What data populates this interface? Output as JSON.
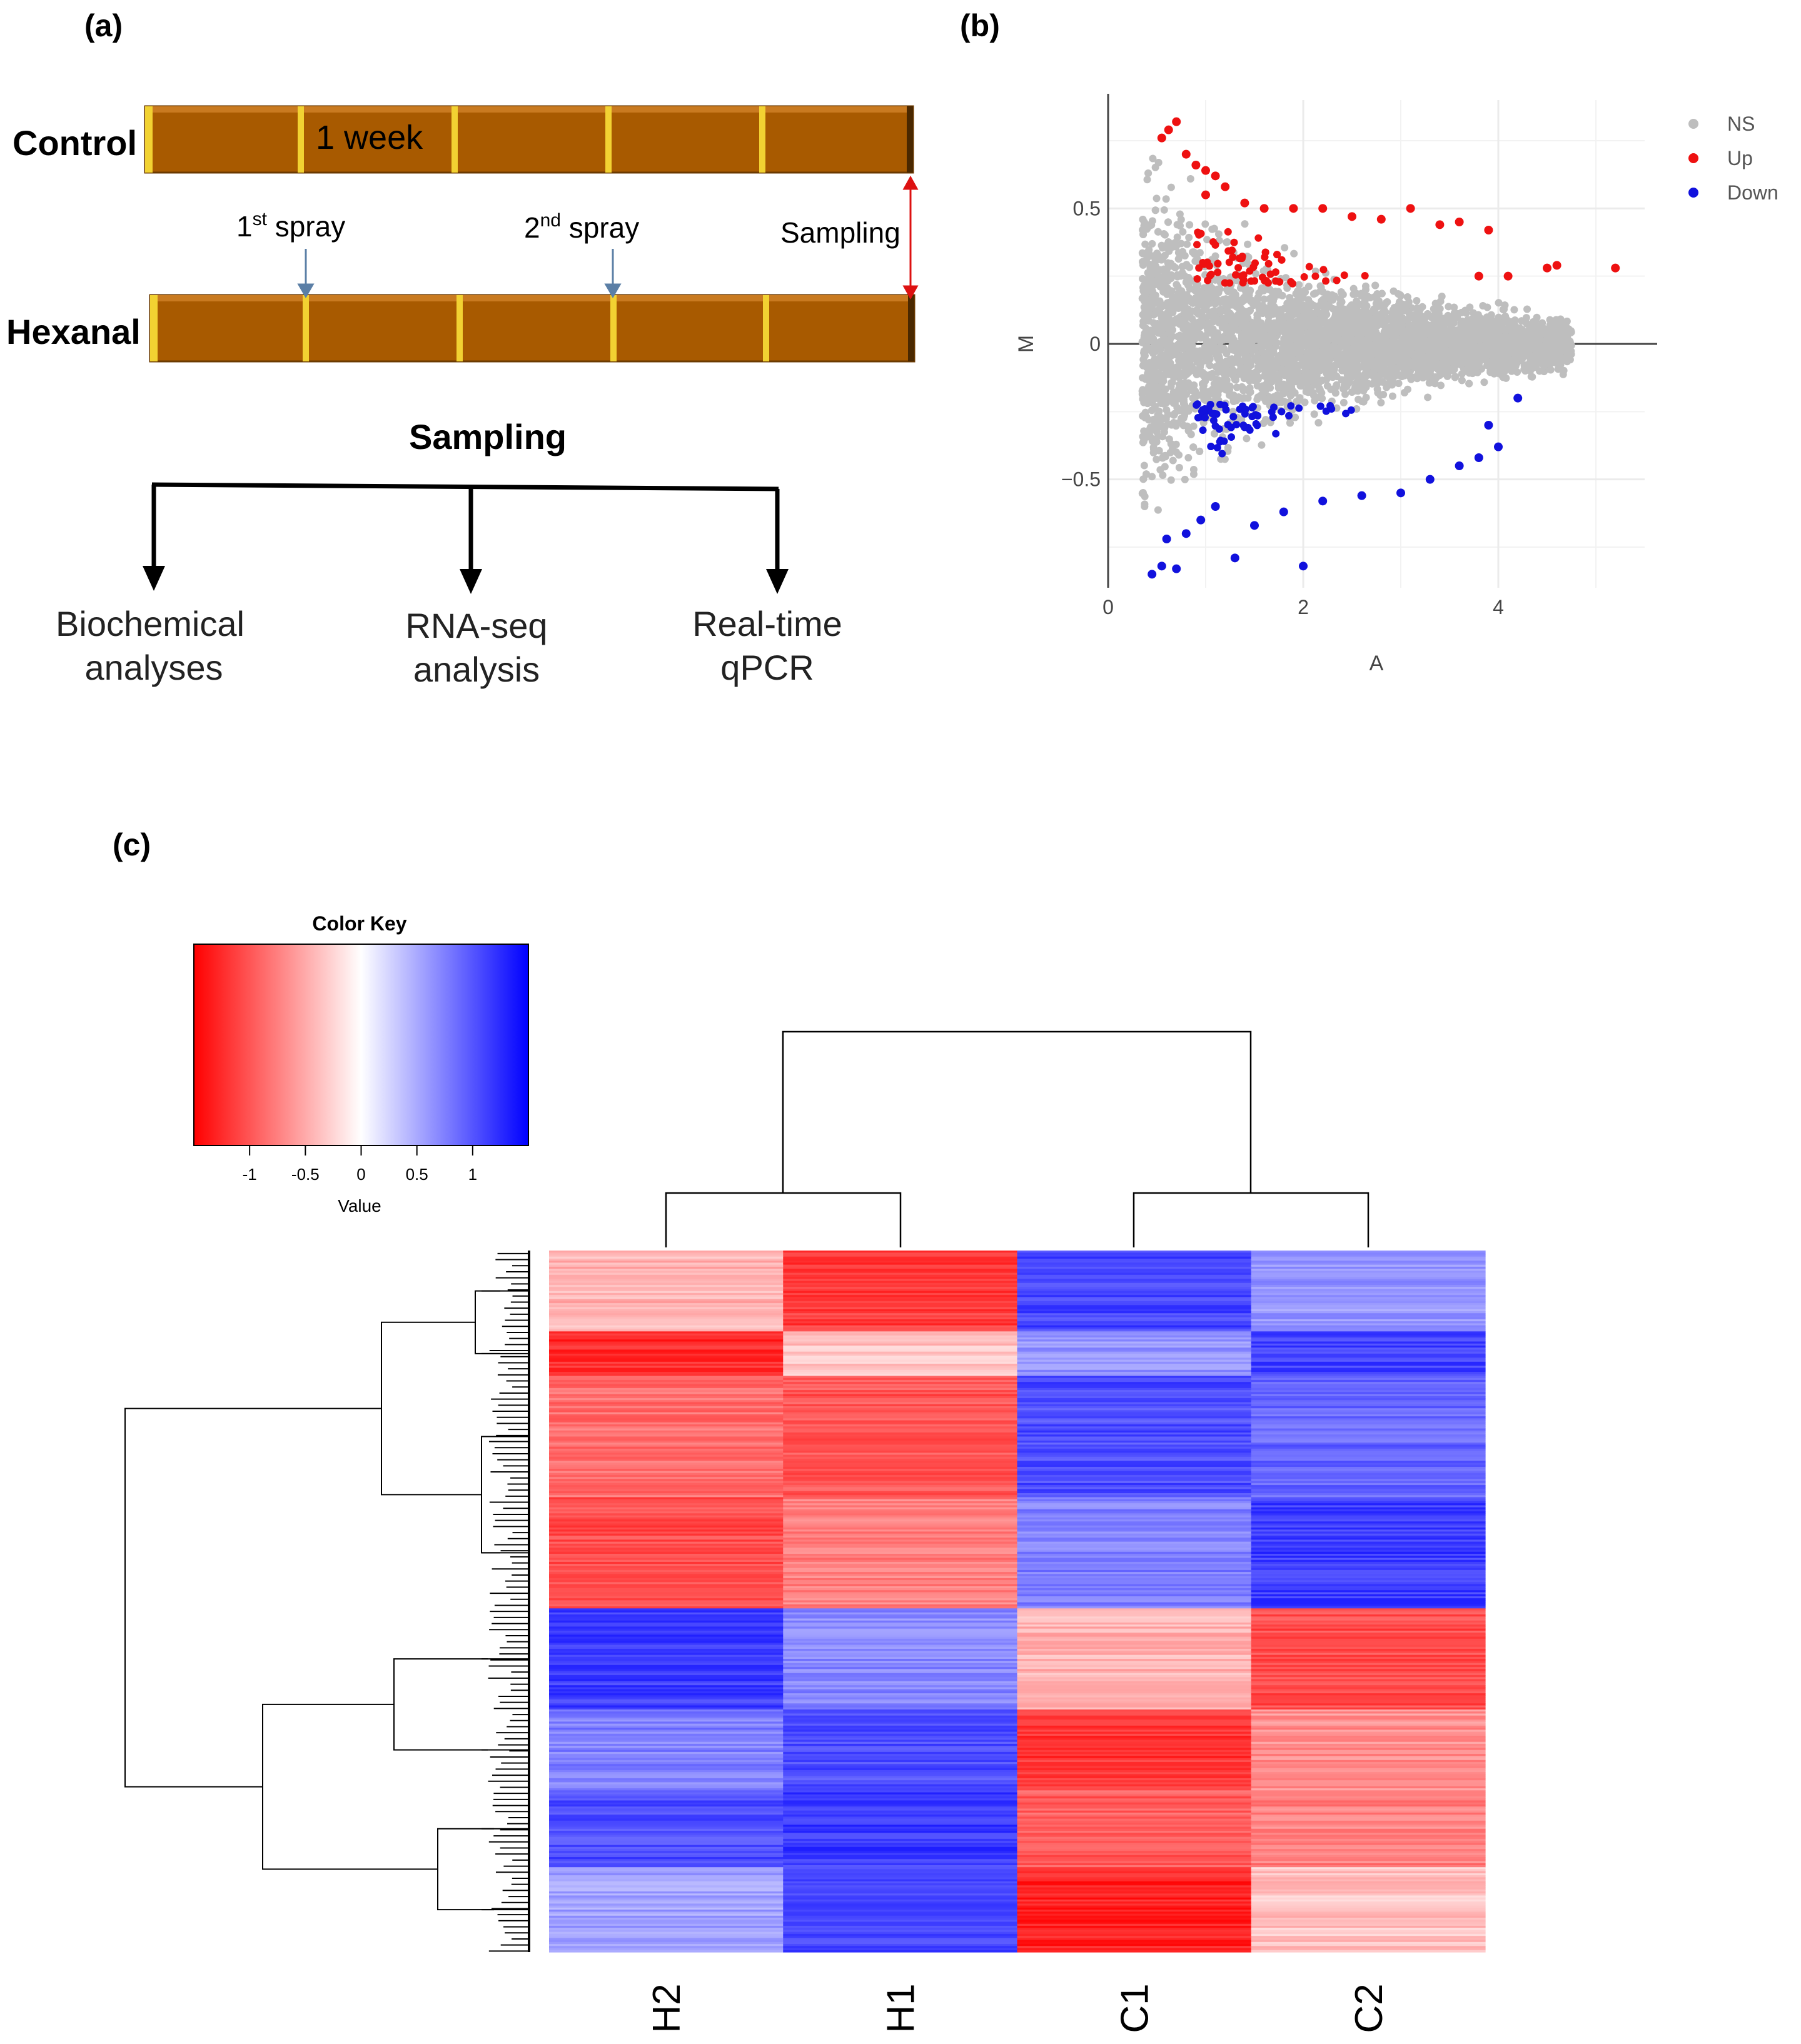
{
  "panel_a": {
    "label": "(a)",
    "control_label": "Control",
    "hexanal_label": "Hexanal",
    "week_label": "1 week",
    "spray1_prefix": "1",
    "spray1_sup": "st",
    "spray1_suffix": " spray",
    "spray2_prefix": "2",
    "spray2_sup": "nd",
    "spray2_suffix": " spray",
    "sampling_arrow_label": "Sampling",
    "sampling_heading": "Sampling",
    "outputs": [
      {
        "line1": "Biochemical",
        "line2": "analyses"
      },
      {
        "line1": "RNA-seq",
        "line2": "analysis"
      },
      {
        "line1": "Real-time",
        "line2": "qPCR"
      }
    ],
    "colors": {
      "bar": "#a85a00",
      "divider": "#f2d232"
    }
  },
  "panel_b": {
    "label": "(b)",
    "chart_data": {
      "type": "scatter",
      "title": "",
      "xlabel": "A",
      "ylabel": "M",
      "xlim": [
        0,
        5.5
      ],
      "ylim": [
        -0.9,
        0.9
      ],
      "xticks": [
        "0",
        "2",
        "4"
      ],
      "xtick_values": [
        0,
        2,
        4
      ],
      "yticks": [
        "0.5",
        "0",
        "−0.5"
      ],
      "ytick_values": [
        0.5,
        0,
        -0.5
      ],
      "legend": [
        {
          "name": "NS",
          "color": "#bebebe"
        },
        {
          "name": "Up",
          "color": "#ee1111"
        },
        {
          "name": "Down",
          "color": "#1111dd"
        }
      ],
      "legend_position": "top-right",
      "note": "MA plot; gray = not significant, red = up-regulated (M > ~0.2), blue = down-regulated (M < ~-0.2)",
      "highlights": {
        "up": [
          [
            0.7,
            0.82
          ],
          [
            0.62,
            0.79
          ],
          [
            0.55,
            0.76
          ],
          [
            0.8,
            0.7
          ],
          [
            0.9,
            0.66
          ],
          [
            1.0,
            0.64
          ],
          [
            1.1,
            0.62
          ],
          [
            1.2,
            0.58
          ],
          [
            1.0,
            0.55
          ],
          [
            1.4,
            0.52
          ],
          [
            1.6,
            0.5
          ],
          [
            1.9,
            0.5
          ],
          [
            2.2,
            0.5
          ],
          [
            2.5,
            0.47
          ],
          [
            2.8,
            0.46
          ],
          [
            3.1,
            0.5
          ],
          [
            3.4,
            0.44
          ],
          [
            3.6,
            0.45
          ],
          [
            3.9,
            0.42
          ],
          [
            4.5,
            0.28
          ],
          [
            4.6,
            0.29
          ],
          [
            5.2,
            0.28
          ],
          [
            4.1,
            0.25
          ],
          [
            3.8,
            0.25
          ]
        ],
        "down": [
          [
            0.45,
            -0.85
          ],
          [
            0.55,
            -0.82
          ],
          [
            0.7,
            -0.83
          ],
          [
            0.6,
            -0.72
          ],
          [
            0.8,
            -0.7
          ],
          [
            0.95,
            -0.65
          ],
          [
            1.1,
            -0.6
          ],
          [
            1.3,
            -0.79
          ],
          [
            1.5,
            -0.67
          ],
          [
            2.0,
            -0.82
          ],
          [
            1.8,
            -0.62
          ],
          [
            2.2,
            -0.58
          ],
          [
            2.6,
            -0.56
          ],
          [
            3.0,
            -0.55
          ],
          [
            3.3,
            -0.5
          ],
          [
            3.6,
            -0.45
          ],
          [
            3.8,
            -0.42
          ],
          [
            4.0,
            -0.38
          ],
          [
            3.9,
            -0.3
          ],
          [
            4.2,
            -0.2
          ]
        ]
      }
    }
  },
  "panel_c": {
    "label": "(c)",
    "color_key": {
      "title": "Color Key",
      "xlabel": "Value",
      "ticks": [
        "-1",
        "-0.5",
        "0",
        "0.5",
        "1"
      ],
      "tick_values": [
        -1,
        -0.5,
        0,
        0.5,
        1
      ],
      "range": [
        -1.5,
        1.5
      ],
      "low_color": "#ff0000",
      "mid_color": "#ffffff",
      "high_color": "#0000ff"
    },
    "chart_data": {
      "type": "heatmap",
      "columns": [
        "H2",
        "H1",
        "C1",
        "C2"
      ],
      "row_blocks": [
        {
          "rows": 40,
          "values": [
            -0.45,
            -1.15,
            1.1,
            0.6
          ]
        },
        {
          "rows": 22,
          "values": [
            -1.25,
            -0.35,
            0.65,
            1.1
          ]
        },
        {
          "rows": 60,
          "values": [
            -0.85,
            -1.0,
            1.05,
            0.9
          ]
        },
        {
          "rows": 55,
          "values": [
            -1.05,
            -0.75,
            0.75,
            1.15
          ]
        },
        {
          "rows": 50,
          "values": [
            1.15,
            0.7,
            -0.45,
            -1.05
          ]
        },
        {
          "rows": 40,
          "values": [
            0.75,
            1.05,
            -1.2,
            -0.65
          ]
        },
        {
          "rows": 38,
          "values": [
            1.05,
            1.15,
            -0.95,
            -0.75
          ]
        },
        {
          "rows": 42,
          "values": [
            0.55,
            1.1,
            -1.3,
            -0.35
          ]
        }
      ],
      "column_dendrogram": "((H2,H1),(C1,C2))",
      "row_dendrogram": "two main clusters: top (up in C) and bottom (up in H)"
    }
  }
}
